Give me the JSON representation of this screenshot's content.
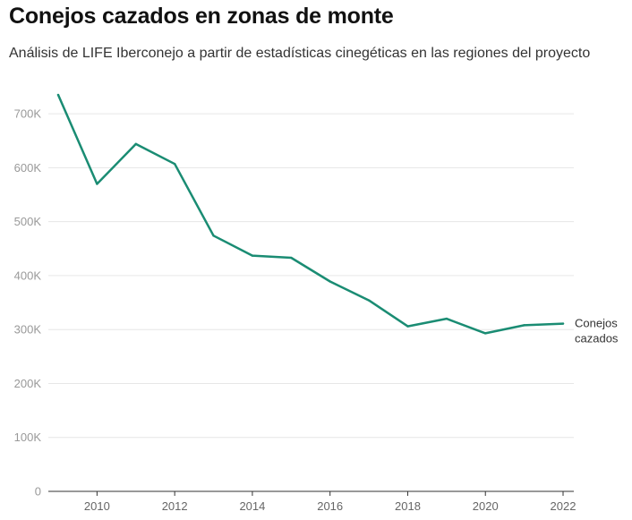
{
  "chart_data": {
    "type": "line",
    "title": "Conejos cazados en zonas de monte",
    "subtitle": "Análisis de LIFE Iberconejo a partir de estadísticas cinegéticas en las regiones del proyecto",
    "xlabel": "",
    "ylabel": "",
    "x": [
      2009,
      2010,
      2011,
      2012,
      2013,
      2014,
      2015,
      2016,
      2017,
      2018,
      2019,
      2020,
      2021,
      2022
    ],
    "series": [
      {
        "name": "Conejos cazados",
        "label_lines": [
          "Conejos",
          "cazados"
        ],
        "color": "#1a8c73",
        "values": [
          735000,
          570000,
          644000,
          607000,
          474000,
          437000,
          433000,
          389000,
          354000,
          306000,
          320000,
          293000,
          308000,
          311000
        ]
      }
    ],
    "y_ticks": [
      0,
      100000,
      200000,
      300000,
      400000,
      500000,
      600000,
      700000
    ],
    "y_tick_labels": [
      "0",
      "100K",
      "200K",
      "300K",
      "400K",
      "500K",
      "600K",
      "700K"
    ],
    "x_ticks": [
      2010,
      2012,
      2014,
      2016,
      2018,
      2020,
      2022
    ],
    "x_tick_labels": [
      "2010",
      "2012",
      "2014",
      "2016",
      "2018",
      "2020",
      "2022"
    ],
    "ylim": [
      0,
      740000
    ],
    "xlim": [
      2009,
      2022
    ],
    "grid": true,
    "legend": "direct-label-right"
  }
}
